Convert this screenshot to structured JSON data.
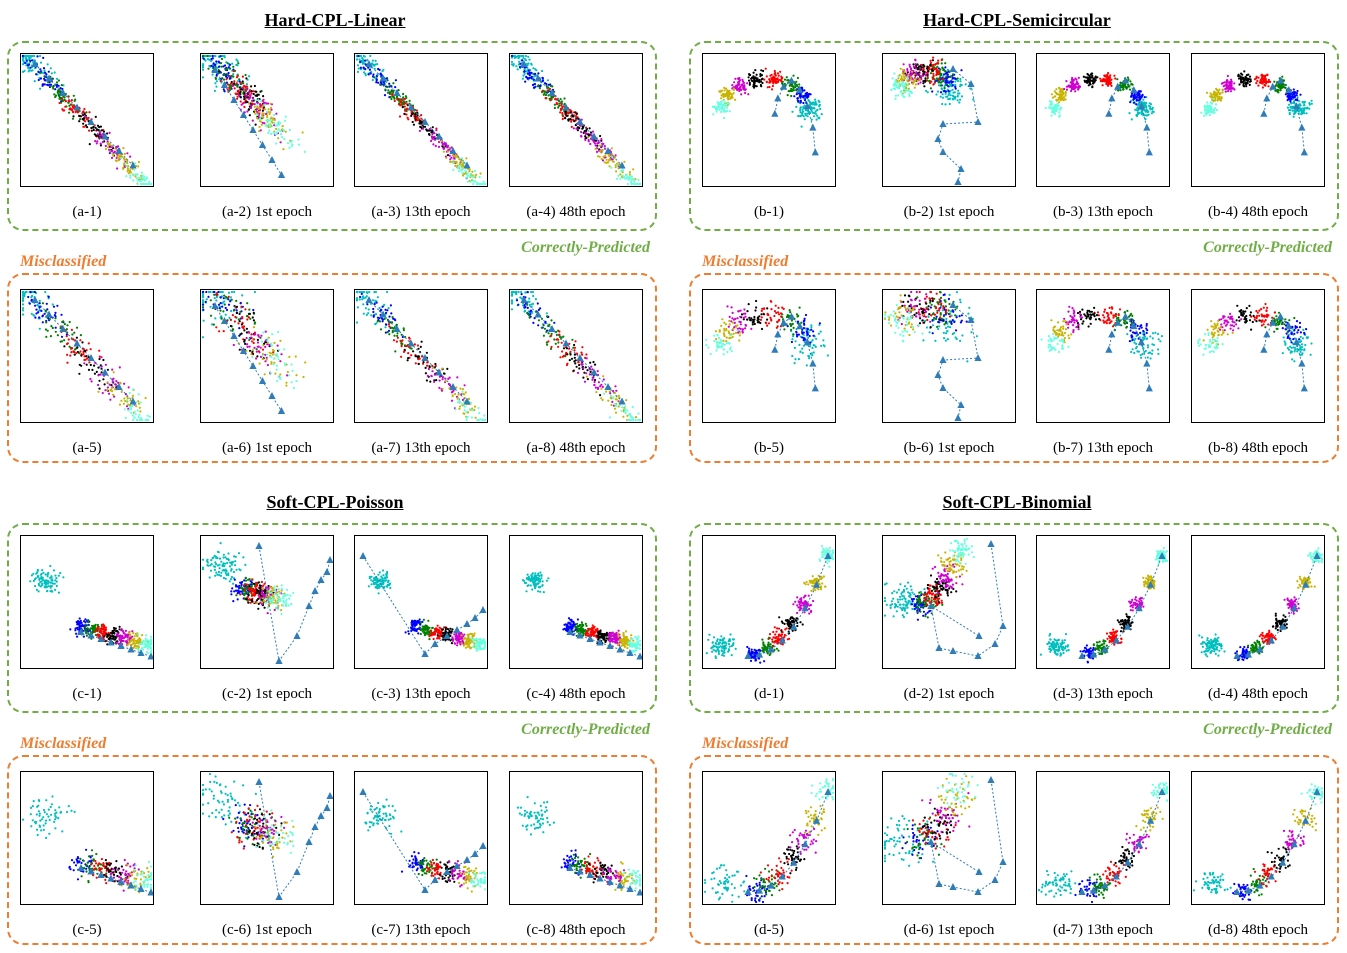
{
  "colors": {
    "correct": "#70ad47",
    "misclassified": "#ed7d31",
    "prototype": "#2e7cb8",
    "classes": [
      "#00bfbf",
      "#0000ff",
      "#008000",
      "#ff0000",
      "#000000",
      "#d000d0",
      "#c8b400",
      "#66ffe0"
    ]
  },
  "icons": {
    "prototype_marker": "triangle-icon"
  },
  "labels": {
    "correct": "Correctly-Predicted",
    "misclassified": "Misclassified"
  },
  "chart_data": [
    {
      "type": "scatter",
      "title": "Hard-CPL-Linear",
      "shape": "linear",
      "panels": [
        {
          "caption": "(a-1)",
          "stage": "initial",
          "group": "correct"
        },
        {
          "caption": "(a-2) 1st epoch",
          "stage": "epoch1",
          "group": "correct"
        },
        {
          "caption": "(a-3) 13th epoch",
          "stage": "epoch13",
          "group": "correct"
        },
        {
          "caption": "(a-4) 48th epoch",
          "stage": "epoch48",
          "group": "correct"
        },
        {
          "caption": "(a-5)",
          "stage": "initial",
          "group": "misclassified"
        },
        {
          "caption": "(a-6) 1st epoch",
          "stage": "epoch1",
          "group": "misclassified"
        },
        {
          "caption": "(a-7) 13th epoch",
          "stage": "epoch13",
          "group": "misclassified"
        },
        {
          "caption": "(a-8) 48th epoch",
          "stage": "epoch48",
          "group": "misclassified"
        }
      ]
    },
    {
      "type": "scatter",
      "title": "Hard-CPL-Semicircular",
      "shape": "semicircular",
      "panels": [
        {
          "caption": "(b-1)",
          "stage": "initial",
          "group": "correct"
        },
        {
          "caption": "(b-2) 1st epoch",
          "stage": "epoch1",
          "group": "correct"
        },
        {
          "caption": "(b-3) 13th epoch",
          "stage": "epoch13",
          "group": "correct"
        },
        {
          "caption": "(b-4) 48th epoch",
          "stage": "epoch48",
          "group": "correct"
        },
        {
          "caption": "(b-5)",
          "stage": "initial",
          "group": "misclassified"
        },
        {
          "caption": "(b-6) 1st epoch",
          "stage": "epoch1",
          "group": "misclassified"
        },
        {
          "caption": "(b-7) 13th epoch",
          "stage": "epoch13",
          "group": "misclassified"
        },
        {
          "caption": "(b-8) 48th epoch",
          "stage": "epoch48",
          "group": "misclassified"
        }
      ]
    },
    {
      "type": "scatter",
      "title": "Soft-CPL-Poisson",
      "shape": "poisson",
      "panels": [
        {
          "caption": "(c-1)",
          "stage": "initial",
          "group": "correct"
        },
        {
          "caption": "(c-2) 1st epoch",
          "stage": "epoch1",
          "group": "correct"
        },
        {
          "caption": "(c-3) 13th epoch",
          "stage": "epoch13",
          "group": "correct"
        },
        {
          "caption": "(c-4) 48th epoch",
          "stage": "epoch48",
          "group": "correct"
        },
        {
          "caption": "(c-5)",
          "stage": "initial",
          "group": "misclassified"
        },
        {
          "caption": "(c-6) 1st epoch",
          "stage": "epoch1",
          "group": "misclassified"
        },
        {
          "caption": "(c-7) 13th epoch",
          "stage": "epoch13",
          "group": "misclassified"
        },
        {
          "caption": "(c-8) 48th epoch",
          "stage": "epoch48",
          "group": "misclassified"
        }
      ]
    },
    {
      "type": "scatter",
      "title": "Soft-CPL-Binomial",
      "shape": "binomial",
      "panels": [
        {
          "caption": "(d-1)",
          "stage": "initial",
          "group": "correct"
        },
        {
          "caption": "(d-2) 1st epoch",
          "stage": "epoch1",
          "group": "correct"
        },
        {
          "caption": "(d-3) 13th epoch",
          "stage": "epoch13",
          "group": "correct"
        },
        {
          "caption": "(d-4) 48th epoch",
          "stage": "epoch48",
          "group": "correct"
        },
        {
          "caption": "(d-5)",
          "stage": "initial",
          "group": "misclassified"
        },
        {
          "caption": "(d-6) 1st epoch",
          "stage": "epoch1",
          "group": "misclassified"
        },
        {
          "caption": "(d-7) 13th epoch",
          "stage": "epoch13",
          "group": "misclassified"
        },
        {
          "caption": "(d-8) 48th epoch",
          "stage": "epoch48",
          "group": "misclassified"
        }
      ]
    }
  ]
}
